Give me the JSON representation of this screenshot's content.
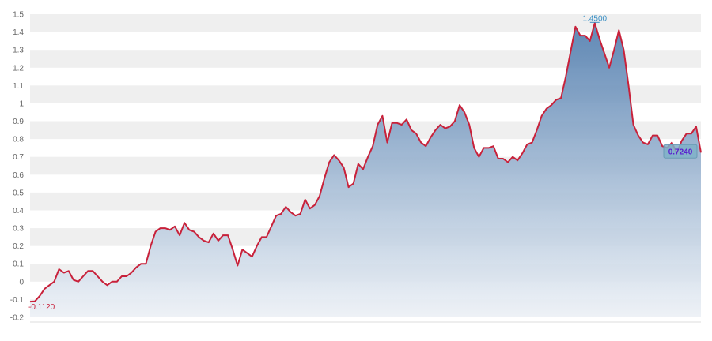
{
  "chart_data": {
    "type": "area",
    "title": "",
    "xlabel": "",
    "ylabel": "",
    "ylim": [
      -0.2,
      1.5
    ],
    "yticks": [
      "-0.2",
      "-0.1",
      "0",
      "0.1",
      "0.2",
      "0.3",
      "0.4",
      "0.5",
      "0.6",
      "0.7",
      "0.8",
      "0.9",
      "1",
      "1.1",
      "1.2",
      "1.3",
      "1.4",
      "1.5"
    ],
    "grid": "alternating horizontal bands",
    "legend": "none",
    "colors": {
      "line": "#c8213a",
      "fill_top": "#4a78ab",
      "fill_bottom": "#eef2f7",
      "band": "#efefef",
      "max_label": "#3a8fc4",
      "min_label": "#c8213a",
      "last_label": "#5a1fd0"
    },
    "values": [
      -0.112,
      -0.11,
      -0.08,
      -0.04,
      -0.02,
      0.0,
      0.07,
      0.05,
      0.06,
      0.01,
      0.0,
      0.03,
      0.06,
      0.06,
      0.03,
      0.0,
      -0.02,
      0.0,
      0.0,
      0.03,
      0.03,
      0.05,
      0.08,
      0.1,
      0.1,
      0.2,
      0.28,
      0.3,
      0.3,
      0.29,
      0.31,
      0.26,
      0.33,
      0.29,
      0.28,
      0.25,
      0.23,
      0.22,
      0.27,
      0.23,
      0.26,
      0.26,
      0.18,
      0.09,
      0.18,
      0.16,
      0.14,
      0.2,
      0.25,
      0.25,
      0.31,
      0.37,
      0.38,
      0.42,
      0.39,
      0.37,
      0.38,
      0.46,
      0.41,
      0.43,
      0.48,
      0.58,
      0.67,
      0.71,
      0.68,
      0.64,
      0.53,
      0.55,
      0.66,
      0.63,
      0.7,
      0.76,
      0.88,
      0.93,
      0.78,
      0.89,
      0.89,
      0.88,
      0.91,
      0.85,
      0.83,
      0.78,
      0.76,
      0.81,
      0.85,
      0.88,
      0.86,
      0.87,
      0.9,
      0.99,
      0.95,
      0.88,
      0.75,
      0.7,
      0.75,
      0.75,
      0.76,
      0.69,
      0.69,
      0.67,
      0.7,
      0.68,
      0.72,
      0.77,
      0.78,
      0.85,
      0.93,
      0.97,
      0.99,
      1.02,
      1.03,
      1.15,
      1.29,
      1.43,
      1.38,
      1.38,
      1.35,
      1.45,
      1.36,
      1.28,
      1.2,
      1.3,
      1.41,
      1.3,
      1.1,
      0.88,
      0.82,
      0.78,
      0.77,
      0.82,
      0.82,
      0.76,
      0.75,
      0.78,
      0.72,
      0.79,
      0.83,
      0.83,
      0.87,
      0.724
    ],
    "annotations": {
      "min_label": "-0.1120",
      "max_label": "1.4500",
      "last_label": "0.7240"
    }
  }
}
